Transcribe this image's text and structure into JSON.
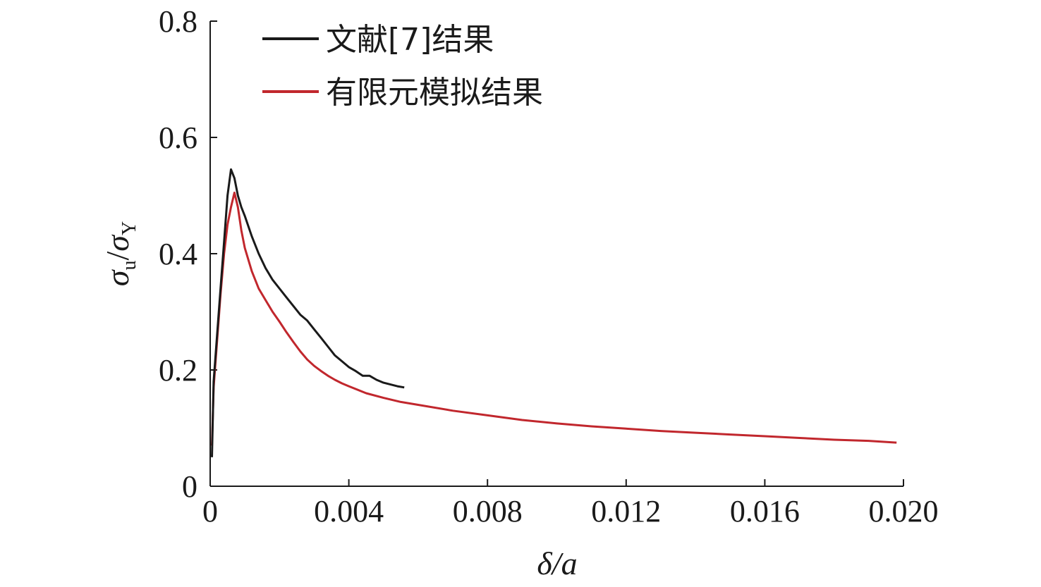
{
  "chart_data": {
    "type": "line",
    "xlabel": {
      "main": "δ/a"
    },
    "ylabel": {
      "sigma": "σ",
      "sub_u": "u",
      "slash": "/",
      "sub_Y": "Y"
    },
    "xlim": [
      0,
      0.02
    ],
    "ylim": [
      0,
      0.8
    ],
    "x_ticks": [
      0,
      0.004,
      0.008,
      0.012,
      0.016,
      0.02
    ],
    "x_tick_labels": [
      "0",
      "0.004",
      "0.008",
      "0.012",
      "0.016",
      "0.020"
    ],
    "y_ticks": [
      0,
      0.2,
      0.4,
      0.6,
      0.8
    ],
    "y_tick_labels": [
      "0",
      "0.2",
      "0.4",
      "0.6",
      "0.8"
    ],
    "grid": false,
    "legend_position": "top-left",
    "series": [
      {
        "name": "文献[7]结果",
        "color": "#1a1a1a",
        "x": [
          5e-05,
          0.0001,
          0.0002,
          0.0003,
          0.0004,
          0.0005,
          0.0006,
          0.0007,
          0.0008,
          0.0009,
          0.001,
          0.0012,
          0.0014,
          0.0016,
          0.0018,
          0.002,
          0.0022,
          0.0024,
          0.0026,
          0.0028,
          0.003,
          0.0032,
          0.0034,
          0.0036,
          0.0038,
          0.004,
          0.0042,
          0.0044,
          0.0046,
          0.0048,
          0.005,
          0.0052,
          0.0054,
          0.0056
        ],
        "y": [
          0.05,
          0.18,
          0.26,
          0.34,
          0.42,
          0.5,
          0.545,
          0.53,
          0.5,
          0.48,
          0.465,
          0.43,
          0.4,
          0.375,
          0.355,
          0.34,
          0.325,
          0.31,
          0.295,
          0.285,
          0.27,
          0.255,
          0.24,
          0.225,
          0.215,
          0.205,
          0.198,
          0.19,
          0.19,
          0.183,
          0.178,
          0.175,
          0.172,
          0.17
        ]
      },
      {
        "name": "有限元模拟结果",
        "color": "#c1272d",
        "x": [
          5e-05,
          0.0001,
          0.0002,
          0.0003,
          0.0004,
          0.0005,
          0.0006,
          0.0007,
          0.0008,
          0.0009,
          0.001,
          0.0012,
          0.0014,
          0.0016,
          0.0018,
          0.002,
          0.0022,
          0.0024,
          0.0026,
          0.0028,
          0.003,
          0.0032,
          0.0034,
          0.0036,
          0.0038,
          0.004,
          0.0045,
          0.005,
          0.0055,
          0.006,
          0.007,
          0.008,
          0.009,
          0.01,
          0.011,
          0.012,
          0.013,
          0.014,
          0.015,
          0.016,
          0.017,
          0.018,
          0.019,
          0.0198
        ],
        "y": [
          0.07,
          0.17,
          0.25,
          0.33,
          0.4,
          0.45,
          0.48,
          0.505,
          0.48,
          0.44,
          0.41,
          0.37,
          0.34,
          0.32,
          0.3,
          0.283,
          0.265,
          0.248,
          0.232,
          0.218,
          0.207,
          0.198,
          0.19,
          0.183,
          0.177,
          0.172,
          0.16,
          0.152,
          0.145,
          0.14,
          0.13,
          0.122,
          0.114,
          0.108,
          0.103,
          0.099,
          0.095,
          0.092,
          0.089,
          0.086,
          0.083,
          0.08,
          0.078,
          0.075
        ]
      }
    ]
  }
}
